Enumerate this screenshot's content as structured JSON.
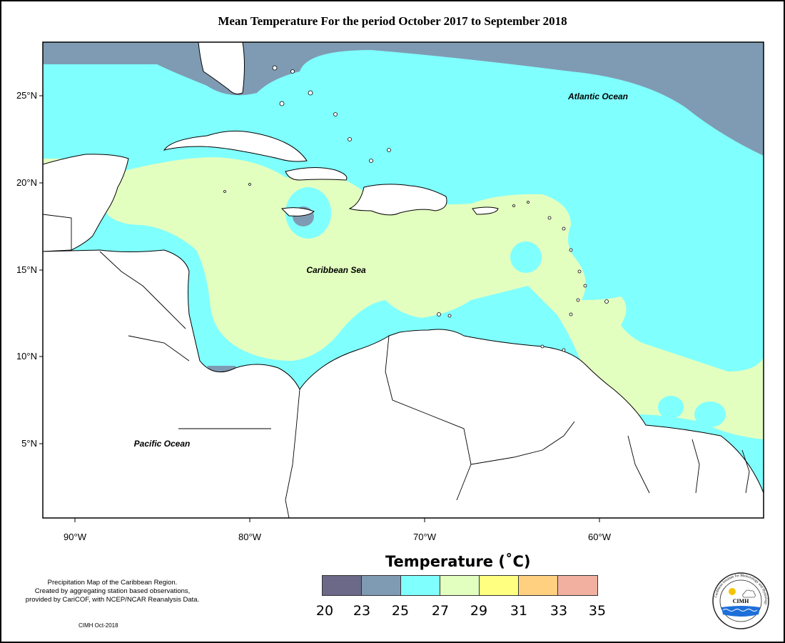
{
  "title": "Mean Temperature For the period October 2017 to September 2018",
  "map": {
    "lat_labels": [
      "25°N",
      "20°N",
      "15°N",
      "10°N",
      "5°N"
    ],
    "lon_labels": [
      "90°W",
      "80°W",
      "70°W",
      "60°W"
    ],
    "regions": {
      "atlantic": "Atlantic Ocean",
      "caribbean": "Caribbean Sea",
      "pacific": "Pacific Ocean"
    }
  },
  "legend": {
    "title": "Temperature (˚C)",
    "colors": [
      "#6b6888",
      "#7f9bb3",
      "#80ffff",
      "#e3ffbf",
      "#ffff80",
      "#ffd080",
      "#f2b0a0"
    ],
    "ticks": [
      "20",
      "23",
      "25",
      "27",
      "29",
      "31",
      "33",
      "35"
    ]
  },
  "notes": {
    "line1": "Precipitation Map of the Caribbean Region.",
    "line2": "Created by aggregating station based observations,",
    "line3": "provided by CariCOF, with NCEP/NCAR Reanalysis Data.",
    "credit": "CIMH Oct-2018"
  },
  "logo": {
    "text": "CIMH",
    "ring_text": "Caribbean Institute for Meteorology and Hydrology"
  }
}
